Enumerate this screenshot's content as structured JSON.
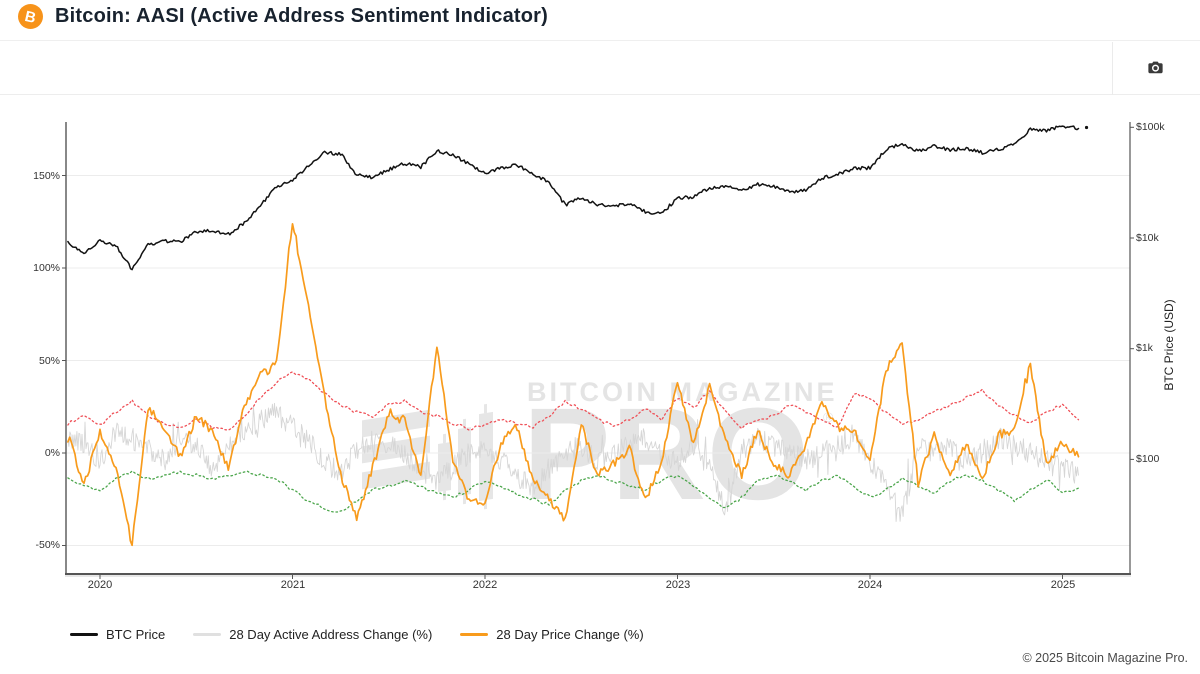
{
  "header": {
    "title": "Bitcoin: AASI (Active Address Sentiment Indicator)"
  },
  "toolbar": {
    "camera_icon": "camera-icon"
  },
  "watermark": {
    "line1": "BITCOIN MAGAZINE",
    "line2": "PRO",
    "registered": "®",
    "logo_icon": "bitcoin-magazine-pro-candlestick-logo"
  },
  "footer": {
    "copyright": "© 2025 Bitcoin Magazine Pro."
  },
  "colors": {
    "brand_orange": "#f7931a",
    "btc_line": "#121212",
    "price_change_line": "#f89b1c",
    "address_change_line": "#d6d6d6",
    "upper_band": "#ef5158",
    "lower_band": "#4ca64c",
    "grid": "#ececec",
    "axis": "#555555"
  },
  "chart_data": {
    "type": "line",
    "title": "Bitcoin: AASI (Active Address Sentiment Indicator)",
    "interval": "monthly",
    "start_month": "2019-11",
    "end_month": "2025-02",
    "x_axis": {
      "tick_labels": [
        "2020",
        "2021",
        "2022",
        "2023",
        "2024",
        "2025"
      ],
      "tick_values": [
        2020,
        2021,
        2022,
        2023,
        2024,
        2025
      ]
    },
    "left_axis": {
      "tick_labels": [
        "150%",
        "100%",
        "50%",
        "0%",
        "-50%"
      ],
      "tick_values": [
        150,
        100,
        50,
        0,
        -50
      ],
      "min": -65,
      "max": 179,
      "grid": true
    },
    "right_axis": {
      "title": "BTC Price (USD)",
      "scale": "log",
      "tick_labels": [
        "$100k",
        "$10k",
        "$1k",
        "$100"
      ],
      "tick_values": [
        100000,
        10000,
        1000,
        100
      ]
    },
    "legend": {
      "position": "bottom-left",
      "items": [
        {
          "label": "BTC Price",
          "color": "#121212"
        },
        {
          "label": "28 Day Active Address Change (%)",
          "color": "#e0e0e0"
        },
        {
          "label": "28 Day Price Change (%)",
          "color": "#f89b1c"
        }
      ]
    },
    "series": [
      {
        "id": "btc_price",
        "name": "BTC Price",
        "axis": "right",
        "style": "solid",
        "color": "#121212",
        "values": [
          9200,
          7250,
          9350,
          8600,
          5200,
          8650,
          9450,
          9150,
          11350,
          11650,
          10800,
          13800,
          19700,
          29000,
          33100,
          45200,
          58900,
          57700,
          37300,
          35000,
          41600,
          47100,
          43800,
          61300,
          57000,
          46200,
          38500,
          43200,
          45500,
          37700,
          31800,
          19900,
          23300,
          20050,
          19400,
          20500,
          17200,
          16550,
          23100,
          23500,
          28500,
          29250,
          27200,
          30450,
          29250,
          26000,
          26950,
          34650,
          37700,
          42250,
          43000,
          62400,
          71300,
          60650,
          67500,
          62700,
          64600,
          59000,
          63300,
          70200,
          96400,
          93400,
          102400,
          97500
        ]
      },
      {
        "id": "active_address_change",
        "name": "28 Day Active Address Change (%)",
        "axis": "left",
        "style": "solid",
        "color": "#d6d6d6",
        "values": [
          8,
          4,
          -4,
          12,
          8,
          2,
          -4,
          8,
          4,
          -8,
          4,
          12,
          18,
          22,
          14,
          6,
          -4,
          -12,
          2,
          8,
          4,
          0,
          -8,
          -16,
          -8,
          0,
          4,
          -4,
          -12,
          -20,
          -8,
          0,
          4,
          -4,
          0,
          4,
          8,
          -2,
          -4,
          4,
          -8,
          -30,
          2,
          8,
          4,
          0,
          -4,
          0,
          4,
          8,
          -4,
          -16,
          -34,
          4,
          0,
          4,
          -4,
          0,
          8,
          4,
          0,
          -4,
          -8,
          -12
        ]
      },
      {
        "id": "price_change",
        "name": "28 Day Price Change (%)",
        "axis": "left",
        "style": "solid",
        "color": "#f89b1c",
        "values": [
          11,
          -18,
          12,
          -8,
          -50,
          25,
          12,
          -2,
          20,
          12,
          -8,
          26,
          42,
          48,
          126,
          78,
          30,
          -12,
          -35,
          -8,
          22,
          18,
          -12,
          58,
          -5,
          -25,
          -28,
          6,
          14,
          -15,
          -25,
          -36,
          16,
          -12,
          -6,
          2,
          -25,
          -6,
          40,
          4,
          36,
          6,
          -12,
          12,
          -6,
          -12,
          4,
          28,
          14,
          12,
          -4,
          45,
          58,
          -16,
          10,
          -12,
          5,
          -15,
          10,
          12,
          48,
          -6,
          6,
          -2
        ]
      },
      {
        "id": "upper_band",
        "name": "Upper band",
        "axis": "left",
        "style": "dotted",
        "color": "#ef5158",
        "values": [
          16,
          20,
          15,
          22,
          28,
          20,
          16,
          14,
          18,
          14,
          12,
          20,
          30,
          38,
          44,
          40,
          32,
          26,
          22,
          20,
          26,
          28,
          22,
          20,
          16,
          13,
          15,
          18,
          16,
          14,
          20,
          28,
          24,
          18,
          15,
          18,
          24,
          18,
          30,
          24,
          34,
          22,
          14,
          18,
          20,
          26,
          22,
          18,
          14,
          32,
          30,
          22,
          16,
          18,
          22,
          26,
          30,
          34,
          26,
          20,
          16,
          22,
          26,
          18
        ]
      },
      {
        "id": "lower_band",
        "name": "Lower band",
        "axis": "left",
        "style": "dotted",
        "color": "#4ca64c",
        "values": [
          -14,
          -18,
          -20,
          -14,
          -10,
          -14,
          -12,
          -10,
          -12,
          -14,
          -12,
          -10,
          -12,
          -14,
          -20,
          -26,
          -30,
          -32,
          -26,
          -20,
          -18,
          -15,
          -18,
          -22,
          -24,
          -20,
          -15,
          -18,
          -22,
          -25,
          -28,
          -20,
          -15,
          -12,
          -15,
          -18,
          -20,
          -15,
          -12,
          -18,
          -25,
          -30,
          -24,
          -15,
          -12,
          -15,
          -20,
          -15,
          -12,
          -18,
          -24,
          -20,
          -14,
          -18,
          -22,
          -15,
          -12,
          -15,
          -20,
          -26,
          -20,
          -14,
          -22,
          -19
        ]
      }
    ]
  }
}
